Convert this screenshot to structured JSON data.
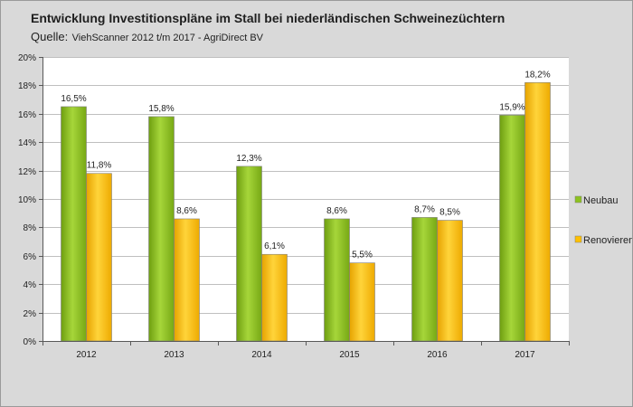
{
  "chart_data": {
    "type": "bar",
    "title": "Entwicklung Investitionspläne im Stall bei niederländischen Schweinezüchtern",
    "subtitle": {
      "label": "Quelle:",
      "text": "ViehScanner 2012 t/m 2017 - AgriDirect BV"
    },
    "categories": [
      "2012",
      "2013",
      "2014",
      "2015",
      "2016",
      "2017"
    ],
    "series": [
      {
        "name": "Neubau",
        "color": "#8dc21f",
        "values": [
          16.5,
          15.8,
          12.3,
          8.6,
          8.7,
          15.9
        ],
        "labels": [
          "16,5%",
          "15,8%",
          "12,3%",
          "8,6%",
          "8,7%",
          "15,9%"
        ]
      },
      {
        "name": "Renovieren",
        "color": "#ffc000",
        "values": [
          11.8,
          8.6,
          6.1,
          5.5,
          8.5,
          18.2
        ],
        "labels": [
          "11,8%",
          "8,6%",
          "6,1%",
          "5,5%",
          "8,5%",
          "18,2%"
        ]
      }
    ],
    "ylim": [
      0,
      20
    ],
    "y_ticks": [
      0,
      2,
      4,
      6,
      8,
      10,
      12,
      14,
      16,
      18,
      20
    ],
    "y_tick_labels": [
      "0%",
      "2%",
      "4%",
      "6%",
      "8%",
      "10%",
      "12%",
      "14%",
      "16%",
      "18%",
      "20%"
    ],
    "grid": true,
    "legend_position": "right"
  }
}
